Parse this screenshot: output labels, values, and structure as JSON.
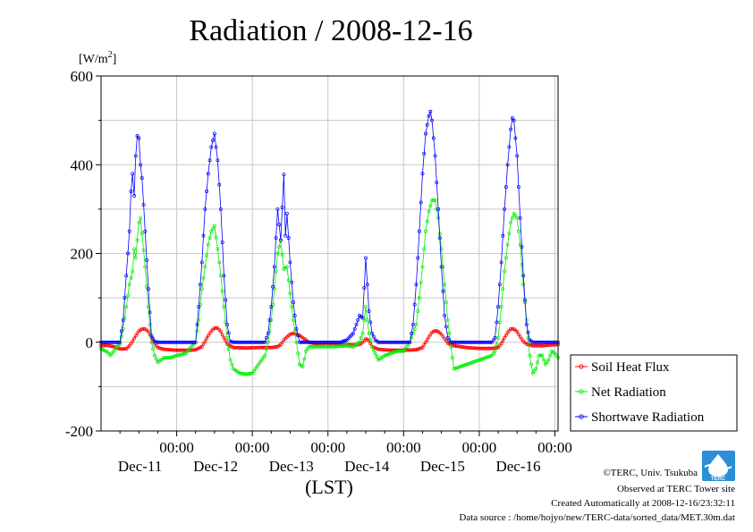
{
  "chart_data": {
    "type": "line",
    "title": "Radiation / 2008-12-16",
    "ylabel": "[W/m2]",
    "ylabel_base": "[W/m",
    "ylabel_sup": "2",
    "ylabel_end": "]",
    "xlabel": "(LST)",
    "ylim": [
      -200,
      600
    ],
    "y_ticks": [
      -200,
      0,
      200,
      400,
      600
    ],
    "y_tick_labels": [
      "-200",
      "0",
      "200",
      "400",
      "600"
    ],
    "x_range_hours": [
      0,
      145
    ],
    "x_ticks": [
      {
        "hour": 24,
        "time": "00:00",
        "date": "Dec-11"
      },
      {
        "hour": 48,
        "time": "00:00",
        "date": "Dec-12"
      },
      {
        "hour": 72,
        "time": "00:00",
        "date": "Dec-13"
      },
      {
        "hour": 96,
        "time": "00:00",
        "date": "Dec-14"
      },
      {
        "hour": 120,
        "time": "00:00",
        "date": "Dec-15"
      },
      {
        "hour": 144,
        "time": "00:00",
        "date": "Dec-16"
      }
    ],
    "grid": true,
    "legend_position": "right",
    "series": [
      {
        "name": "Soil Heat Flux",
        "color": "#ff0000",
        "points": [
          [
            0,
            -8
          ],
          [
            2,
            -7
          ],
          [
            4,
            -10
          ],
          [
            6,
            -15
          ],
          [
            8,
            -15
          ],
          [
            9,
            -8
          ],
          [
            10,
            2
          ],
          [
            11,
            15
          ],
          [
            12,
            25
          ],
          [
            13,
            30
          ],
          [
            14,
            30
          ],
          [
            15,
            24
          ],
          [
            16,
            10
          ],
          [
            17,
            -4
          ],
          [
            18,
            -12
          ],
          [
            20,
            -16
          ],
          [
            24,
            -18
          ],
          [
            28,
            -18
          ],
          [
            30,
            -17
          ],
          [
            32,
            -10
          ],
          [
            33,
            2
          ],
          [
            34,
            15
          ],
          [
            35,
            25
          ],
          [
            36,
            32
          ],
          [
            37,
            32
          ],
          [
            38,
            24
          ],
          [
            39,
            10
          ],
          [
            40,
            -4
          ],
          [
            42,
            -12
          ],
          [
            46,
            -13
          ],
          [
            50,
            -12
          ],
          [
            54,
            -12
          ],
          [
            56,
            -10
          ],
          [
            57,
            -5
          ],
          [
            58,
            5
          ],
          [
            59,
            12
          ],
          [
            60,
            18
          ],
          [
            61,
            20
          ],
          [
            62,
            18
          ],
          [
            63,
            15
          ],
          [
            64,
            10
          ],
          [
            66,
            0
          ],
          [
            68,
            -3
          ],
          [
            72,
            -4
          ],
          [
            76,
            -5
          ],
          [
            80,
            -6
          ],
          [
            82,
            -5
          ],
          [
            83,
            0
          ],
          [
            84,
            8
          ],
          [
            85,
            4
          ],
          [
            86,
            -10
          ],
          [
            88,
            -16
          ],
          [
            92,
            -18
          ],
          [
            96,
            -18
          ],
          [
            100,
            -17
          ],
          [
            102,
            -12
          ],
          [
            103,
            0
          ],
          [
            104,
            12
          ],
          [
            105,
            22
          ],
          [
            106,
            26
          ],
          [
            107,
            24
          ],
          [
            108,
            18
          ],
          [
            109,
            8
          ],
          [
            110,
            -2
          ],
          [
            112,
            -8
          ],
          [
            116,
            -12
          ],
          [
            120,
            -14
          ],
          [
            124,
            -14
          ],
          [
            126,
            -12
          ],
          [
            127,
            -3
          ],
          [
            128,
            10
          ],
          [
            129,
            22
          ],
          [
            130,
            30
          ],
          [
            131,
            30
          ],
          [
            132,
            24
          ],
          [
            133,
            12
          ],
          [
            134,
            2
          ],
          [
            135,
            -4
          ],
          [
            137,
            -8
          ],
          [
            140,
            -8
          ],
          [
            143,
            -6
          ],
          [
            145,
            -5
          ]
        ]
      },
      {
        "name": "Net Radiation",
        "color": "#00ee00",
        "points": [
          [
            0,
            -15
          ],
          [
            2,
            -22
          ],
          [
            3,
            -30
          ],
          [
            4,
            -20
          ],
          [
            5,
            -10
          ],
          [
            6,
            -5
          ],
          [
            7,
            30
          ],
          [
            8,
            80
          ],
          [
            9,
            130
          ],
          [
            10,
            160
          ],
          [
            10.5,
            210
          ],
          [
            11,
            190
          ],
          [
            12,
            270
          ],
          [
            12.5,
            280
          ],
          [
            13,
            245
          ],
          [
            14,
            170
          ],
          [
            15,
            80
          ],
          [
            16,
            0
          ],
          [
            17,
            -30
          ],
          [
            18,
            -45
          ],
          [
            19,
            -40
          ],
          [
            20,
            -35
          ],
          [
            22,
            -35
          ],
          [
            24,
            -30
          ],
          [
            27,
            -25
          ],
          [
            28,
            -15
          ],
          [
            30,
            0
          ],
          [
            31,
            50
          ],
          [
            32,
            120
          ],
          [
            33,
            170
          ],
          [
            34,
            220
          ],
          [
            35,
            250
          ],
          [
            36,
            262
          ],
          [
            37,
            210
          ],
          [
            38,
            150
          ],
          [
            39,
            80
          ],
          [
            40,
            10
          ],
          [
            41,
            -40
          ],
          [
            42,
            -60
          ],
          [
            44,
            -70
          ],
          [
            46,
            -72
          ],
          [
            48,
            -70
          ],
          [
            50,
            -50
          ],
          [
            52,
            -30
          ],
          [
            53,
            0
          ],
          [
            54,
            50
          ],
          [
            55,
            120
          ],
          [
            56,
            200
          ],
          [
            57,
            230
          ],
          [
            58,
            165
          ],
          [
            59,
            170
          ],
          [
            60,
            110
          ],
          [
            61,
            50
          ],
          [
            62,
            0
          ],
          [
            63,
            -50
          ],
          [
            64,
            -55
          ],
          [
            65,
            -20
          ],
          [
            66,
            -10
          ],
          [
            70,
            -10
          ],
          [
            74,
            -10
          ],
          [
            78,
            -8
          ],
          [
            80,
            -10
          ],
          [
            82,
            0
          ],
          [
            83,
            20
          ],
          [
            84,
            80
          ],
          [
            85,
            20
          ],
          [
            86,
            -10
          ],
          [
            88,
            -40
          ],
          [
            90,
            -30
          ],
          [
            92,
            -25
          ],
          [
            94,
            -20
          ],
          [
            96,
            -20
          ],
          [
            98,
            0
          ],
          [
            100,
            40
          ],
          [
            101,
            100
          ],
          [
            102,
            170
          ],
          [
            103,
            250
          ],
          [
            104,
            295
          ],
          [
            105,
            320
          ],
          [
            106,
            320
          ],
          [
            107,
            280
          ],
          [
            108,
            210
          ],
          [
            109,
            130
          ],
          [
            110,
            50
          ],
          [
            111,
            -10
          ],
          [
            112,
            -60
          ],
          [
            114,
            -55
          ],
          [
            116,
            -50
          ],
          [
            118,
            -45
          ],
          [
            120,
            -40
          ],
          [
            122,
            -35
          ],
          [
            124,
            -30
          ],
          [
            125,
            -20
          ],
          [
            126,
            10
          ],
          [
            127,
            80
          ],
          [
            128,
            160
          ],
          [
            129,
            220
          ],
          [
            130,
            270
          ],
          [
            131,
            290
          ],
          [
            132,
            280
          ],
          [
            133,
            220
          ],
          [
            134,
            130
          ],
          [
            135,
            50
          ],
          [
            136,
            -30
          ],
          [
            137,
            -70
          ],
          [
            138,
            -60
          ],
          [
            139,
            -30
          ],
          [
            140,
            -30
          ],
          [
            141,
            -50
          ],
          [
            142,
            -40
          ],
          [
            143,
            -20
          ],
          [
            144,
            -25
          ],
          [
            145,
            -35
          ]
        ]
      },
      {
        "name": "Shortwave Radiation",
        "color": "#0000ff",
        "points": [
          [
            0,
            0
          ],
          [
            5,
            0
          ],
          [
            6,
            0
          ],
          [
            7,
            50
          ],
          [
            8,
            150
          ],
          [
            9,
            250
          ],
          [
            9.5,
            340
          ],
          [
            10,
            380
          ],
          [
            10.5,
            330
          ],
          [
            11,
            420
          ],
          [
            11.5,
            465
          ],
          [
            12,
            460
          ],
          [
            12.5,
            400
          ],
          [
            13,
            370
          ],
          [
            14,
            250
          ],
          [
            15,
            120
          ],
          [
            16,
            15
          ],
          [
            17,
            2
          ],
          [
            18,
            0
          ],
          [
            24,
            0
          ],
          [
            28,
            0
          ],
          [
            30,
            0
          ],
          [
            31,
            80
          ],
          [
            32,
            180
          ],
          [
            33,
            300
          ],
          [
            34,
            380
          ],
          [
            35,
            440
          ],
          [
            36,
            470
          ],
          [
            37,
            410
          ],
          [
            38,
            300
          ],
          [
            39,
            150
          ],
          [
            40,
            40
          ],
          [
            41,
            2
          ],
          [
            42,
            0
          ],
          [
            48,
            0
          ],
          [
            52,
            0
          ],
          [
            53,
            20
          ],
          [
            54,
            80
          ],
          [
            55,
            170
          ],
          [
            56,
            300
          ],
          [
            57,
            230
          ],
          [
            58,
            378
          ],
          [
            58.5,
            240
          ],
          [
            59,
            290
          ],
          [
            60,
            180
          ],
          [
            61,
            90
          ],
          [
            62,
            30
          ],
          [
            63,
            0
          ],
          [
            64,
            0
          ],
          [
            72,
            0
          ],
          [
            76,
            0
          ],
          [
            78,
            5
          ],
          [
            80,
            20
          ],
          [
            81,
            40
          ],
          [
            82,
            60
          ],
          [
            83,
            55
          ],
          [
            84,
            190
          ],
          [
            85,
            70
          ],
          [
            86,
            20
          ],
          [
            87,
            5
          ],
          [
            88,
            0
          ],
          [
            96,
            0
          ],
          [
            98,
            0
          ],
          [
            99,
            40
          ],
          [
            100,
            130
          ],
          [
            101,
            250
          ],
          [
            102,
            380
          ],
          [
            103,
            470
          ],
          [
            104,
            510
          ],
          [
            104.5,
            520
          ],
          [
            105,
            500
          ],
          [
            106,
            420
          ],
          [
            107,
            300
          ],
          [
            108,
            170
          ],
          [
            109,
            60
          ],
          [
            110,
            10
          ],
          [
            111,
            0
          ],
          [
            120,
            0
          ],
          [
            124,
            0
          ],
          [
            125,
            10
          ],
          [
            126,
            80
          ],
          [
            127,
            180
          ],
          [
            128,
            300
          ],
          [
            129,
            400
          ],
          [
            130,
            480
          ],
          [
            130.5,
            505
          ],
          [
            131,
            500
          ],
          [
            132,
            420
          ],
          [
            133,
            280
          ],
          [
            134,
            150
          ],
          [
            135,
            40
          ],
          [
            136,
            5
          ],
          [
            137,
            0
          ],
          [
            145,
            0
          ]
        ]
      }
    ]
  },
  "credits": {
    "copyright": "©TERC, Univ. Tsukuba",
    "observed": "Observed at TERC Tower site",
    "created": "Created Automatically at 2008-12-16/23:32:11",
    "source": "Data source : /home/hojyo/new/TERC-data/sorted_data/MET.30m.dat",
    "logo_text": "TERC"
  }
}
